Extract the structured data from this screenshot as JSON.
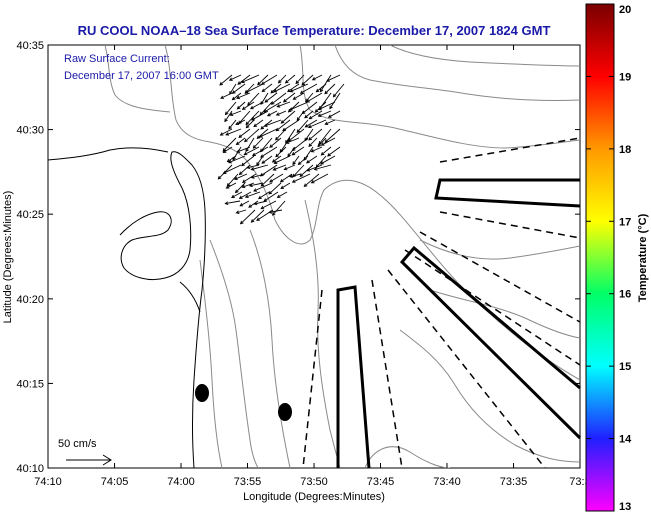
{
  "chart_data": {
    "type": "map",
    "title": "RU COOL  NOAA–18  Sea Surface Temperature:  December 17, 2007 1824 GMT",
    "annotation_lines": [
      "Raw Surface Current:",
      "December 17, 2007 16:00 GMT"
    ],
    "xlabel": "Longitude (Degrees:Minutes)",
    "ylabel": "Latitude (Degrees:Minutes)",
    "x_ticks": [
      {
        "value": -74.1667,
        "label": "74:10"
      },
      {
        "value": -74.0833,
        "label": "74:05"
      },
      {
        "value": -74.0,
        "label": "74:00"
      },
      {
        "value": -73.9167,
        "label": "73:55"
      },
      {
        "value": -73.8333,
        "label": "73:50"
      },
      {
        "value": -73.75,
        "label": "73:45"
      },
      {
        "value": -73.6667,
        "label": "73:40"
      },
      {
        "value": -73.5833,
        "label": "73:35"
      },
      {
        "value": -73.5,
        "label": "73:3"
      }
    ],
    "y_ticks": [
      {
        "value": 40.5833,
        "label": "40:35"
      },
      {
        "value": 40.5,
        "label": "40:30"
      },
      {
        "value": 40.4167,
        "label": "40:25"
      },
      {
        "value": 40.3333,
        "label": "40:20"
      },
      {
        "value": 40.25,
        "label": "40:15"
      },
      {
        "value": 40.1667,
        "label": "40:10"
      }
    ],
    "xlim": [
      -74.1667,
      -73.5
    ],
    "ylim": [
      40.1667,
      40.5833
    ],
    "scale_arrow_label": "50 cm/s",
    "colorbar": {
      "label": "Temperature (°C)",
      "min": 13,
      "max": 20,
      "ticks": [
        13,
        14,
        15,
        16,
        17,
        18,
        19,
        20
      ],
      "colors": [
        "#ff00ff",
        "#2020ff",
        "#00ffff",
        "#00ff66",
        "#ffff00",
        "#ff9900",
        "#ff0000",
        "#7a0000"
      ]
    },
    "markers": [
      {
        "lon": -73.98,
        "lat": 40.245
      },
      {
        "lon": -73.872,
        "lat": 40.223
      }
    ],
    "shipping_lanes": [
      {
        "name": "east",
        "outline": [
          [
            -73.69,
            40.452
          ],
          [
            -73.5,
            40.452
          ],
          [
            -73.5,
            40.432
          ],
          [
            -73.69,
            40.438
          ]
        ]
      },
      {
        "name": "southeast",
        "outline": [
          [
            -73.725,
            40.376
          ],
          [
            -73.708,
            40.385
          ],
          [
            -73.5,
            40.252
          ],
          [
            -73.5,
            40.21
          ]
        ]
      },
      {
        "name": "south",
        "outline": [
          [
            -73.807,
            40.168
          ],
          [
            -73.81,
            40.316
          ],
          [
            -73.785,
            40.322
          ],
          [
            -73.77,
            40.168
          ]
        ]
      }
    ]
  }
}
